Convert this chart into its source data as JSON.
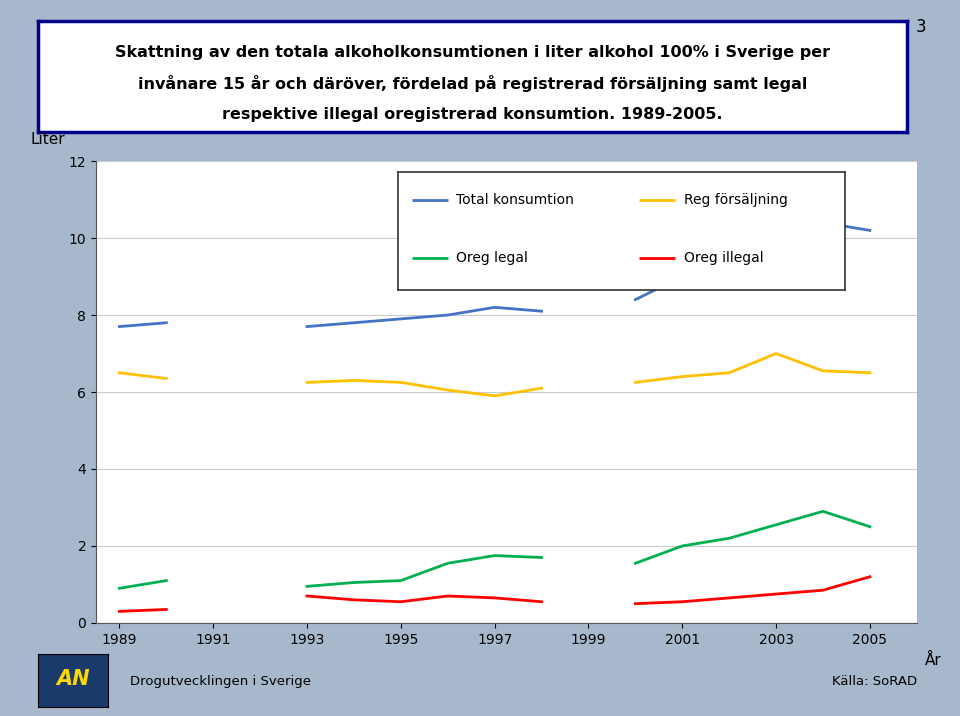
{
  "title_line1": "Skattning av den totala alkoholkonsumtionen i liter alkohol 100% i Sverige per",
  "title_line2": "invånare 15 år och däröver, fördelad på registrerad försäljning samt legal",
  "title_line3": "respektive illegal oregistrerad konsumtion. 1989-2005.",
  "page_number": "3",
  "bg_color": "#a8b8cc",
  "plot_bg_color": "#ffffff",
  "ylabel": "Liter",
  "xlabel": "År",
  "footer_left": "Drogutvecklingen i Sverige",
  "footer_right": "Källa: SoRAD",
  "seg1_years": [
    1989,
    1990
  ],
  "seg1_total": [
    7.7,
    7.8
  ],
  "seg1_reg": [
    6.5,
    6.35
  ],
  "seg1_legal": [
    0.9,
    1.1
  ],
  "seg1_illegal": [
    0.3,
    0.35
  ],
  "seg2_years": [
    1993,
    1994,
    1995,
    1996,
    1997,
    1998
  ],
  "seg2_total": [
    7.7,
    7.8,
    7.9,
    8.0,
    8.2,
    8.1
  ],
  "seg2_reg": [
    6.25,
    6.3,
    6.25,
    6.05,
    5.9,
    6.1
  ],
  "seg2_legal": [
    0.95,
    1.05,
    1.1,
    1.55,
    1.75,
    1.7
  ],
  "seg2_illegal": [
    0.7,
    0.6,
    0.55,
    0.7,
    0.65,
    0.55
  ],
  "seg3_years": [
    2000,
    2001,
    2002,
    2003,
    2004,
    2005
  ],
  "seg3_total": [
    8.4,
    9.0,
    9.7,
    10.1,
    10.4,
    10.2
  ],
  "seg3_reg": [
    6.25,
    6.4,
    6.5,
    7.0,
    6.55,
    6.5
  ],
  "seg3_legal": [
    1.55,
    2.0,
    2.2,
    2.55,
    2.9,
    2.5
  ],
  "seg3_illegal": [
    0.5,
    0.55,
    0.65,
    0.75,
    0.85,
    1.2
  ],
  "color_total": "#4472c4",
  "color_reg": "#ffc000",
  "color_oreg_legal": "#00b050",
  "color_oreg_illegal": "#ff0000",
  "ylim": [
    0,
    12
  ],
  "yticks": [
    0,
    2,
    4,
    6,
    8,
    10,
    12
  ],
  "xticks": [
    1989,
    1991,
    1993,
    1995,
    1997,
    1999,
    2001,
    2003,
    2005
  ],
  "xlim": [
    1988.5,
    2006.0
  ],
  "logo_bg": "#1a3a6b",
  "logo_text_color": "#ffd700"
}
